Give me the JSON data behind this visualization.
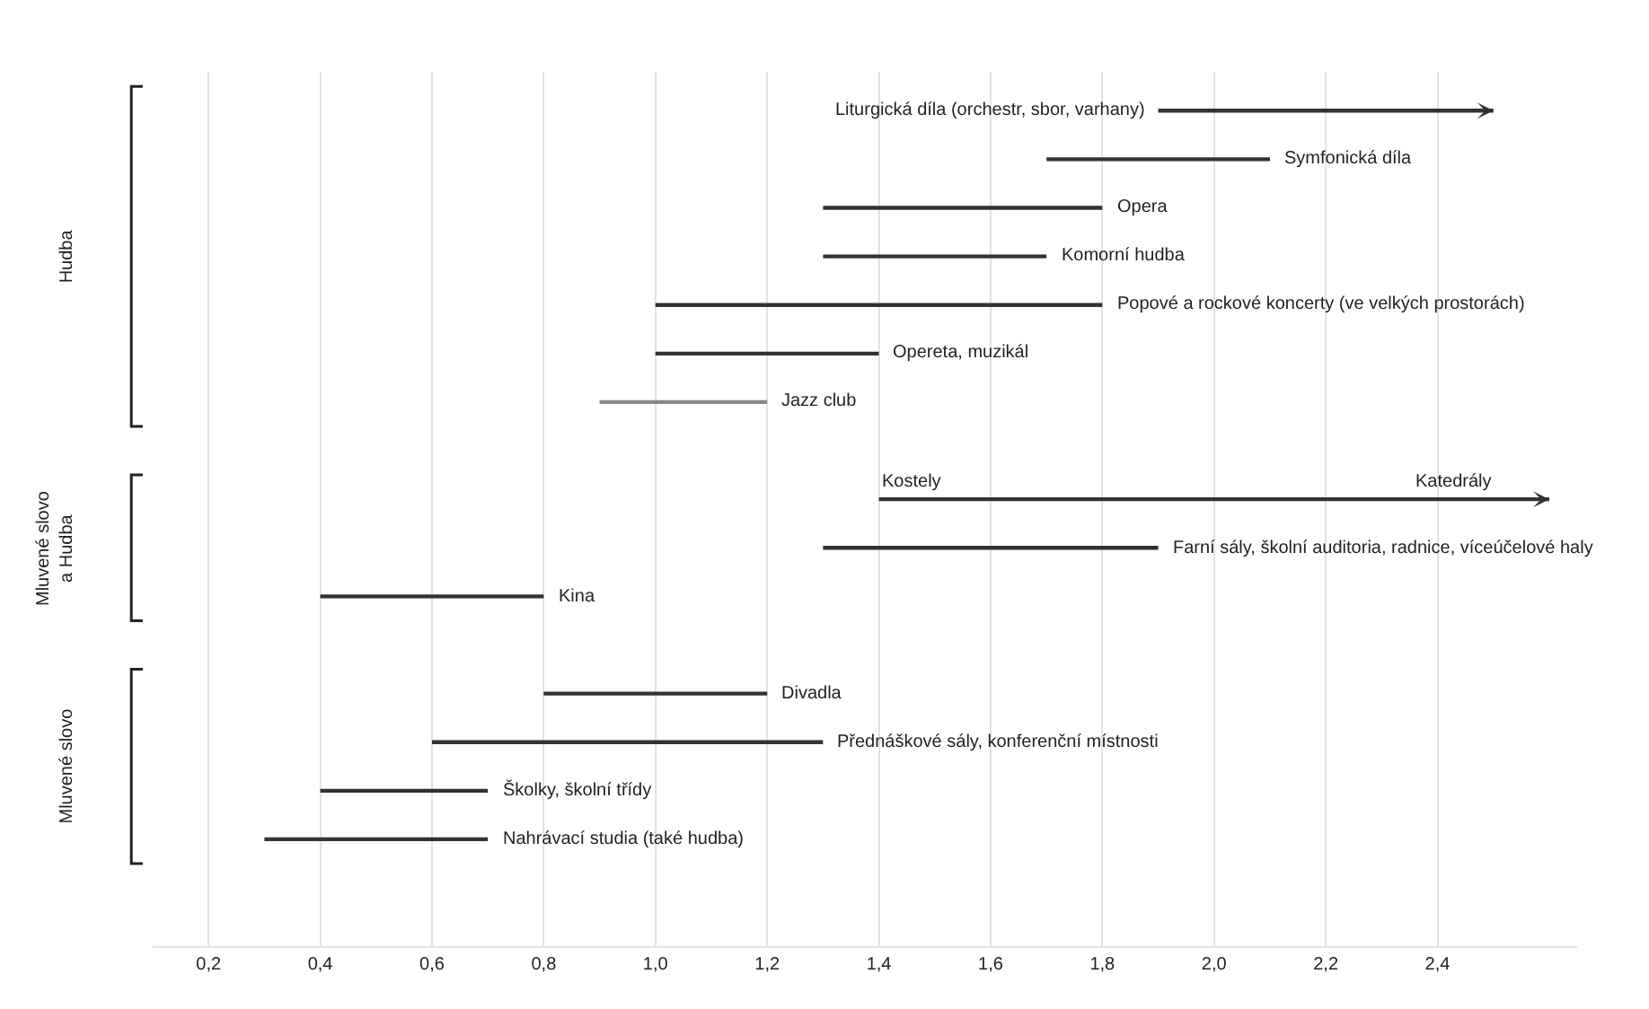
{
  "chart_data": {
    "type": "bar",
    "orientation": "horizontal",
    "categories": [
      "Liturgická díla (orchestr, sbor, varhany)",
      "Symfonická díla",
      "Opera",
      "Komorní hudba",
      "Popové a rockové koncerty (ve velkých prostorách)",
      "Opereta, muzikál",
      "Jazz club",
      null,
      "Kostely",
      "Farní sály, školní auditoria, radnice, víceúčelové haly",
      "Kina",
      null,
      "Divadla",
      "Přednáškové sály, konferenční místnosti",
      "Školky, školní třídy",
      "Nahrávací studia (také hudba)"
    ],
    "base": [
      1.9,
      1.7,
      1.3,
      1.3,
      1.0,
      1.0,
      0.9,
      null,
      1.4,
      1.3,
      0.4,
      null,
      0.8,
      0.6,
      0.4,
      0.3
    ],
    "values": [
      0.6,
      0.4,
      0.5,
      0.4,
      0.8,
      0.4,
      0.3,
      null,
      1.2,
      0.6,
      0.4,
      null,
      0.4,
      0.7,
      0.3,
      0.4
    ],
    "colors": [
      "#333333",
      "#333333",
      "#333333",
      "#333333",
      "#333333",
      "#333333",
      "#888888",
      null,
      "#333333",
      "#333333",
      "#333333",
      null,
      "#333333",
      "#333333",
      "#333333",
      "#333333"
    ],
    "xlim": [
      0.1,
      2.65
    ],
    "xticks": [
      {
        "value": 0.2,
        "label": "0,2"
      },
      {
        "value": 0.4,
        "label": "0,4"
      },
      {
        "value": 0.6,
        "label": "0,6"
      },
      {
        "value": 0.8,
        "label": "0,8"
      },
      {
        "value": 1.0,
        "label": "1,0"
      },
      {
        "value": 1.2,
        "label": "1,2"
      },
      {
        "value": 1.4,
        "label": "1,4"
      },
      {
        "value": 1.6,
        "label": "1,6"
      },
      {
        "value": 1.8,
        "label": "1,8"
      },
      {
        "value": 2.0,
        "label": "2,0"
      },
      {
        "value": 2.2,
        "label": "2,2"
      },
      {
        "value": 2.4,
        "label": "2,4"
      }
    ],
    "grid": "x",
    "annotations": [
      "Hudba",
      "Mluvené slovo\na Hudba",
      "Mluvené slovo",
      "Katedrály"
    ]
  }
}
